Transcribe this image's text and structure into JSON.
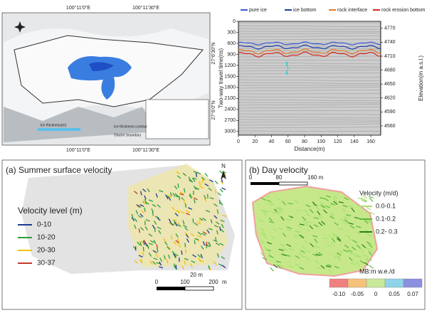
{
  "map_top": {
    "top_labels": [
      "100°11'0\"E",
      "100°11'30\"E"
    ],
    "bottom_labels": [
      "100°11'0\"E",
      "100°11'30\"E"
    ],
    "left_labels": [
      "27°6'30\"N",
      "27°6'0\"N"
    ],
    "legend": [
      "Ice thickness(m)",
      "Ice thickness contour",
      "Glacier boundary"
    ]
  },
  "radar": {
    "legend": [
      {
        "name": "pure ice",
        "color": "#3a5bd9"
      },
      {
        "name": "ice bottom",
        "color": "#1f3fa8"
      },
      {
        "name": "rock interface",
        "color": "#e07a2a"
      },
      {
        "name": "rock erosion bottom",
        "color": "#d62a1e"
      }
    ],
    "y_label": "Two-way travel time(ns)",
    "y2_label": "Elevation(m a.s.l.)",
    "x_label": "Distance(m)",
    "xlim": [
      0,
      172
    ],
    "ylim": [
      0,
      3100
    ],
    "y2lim": [
      4785,
      4540
    ],
    "xticks": [
      0,
      20,
      40,
      60,
      80,
      100,
      120,
      140,
      160
    ],
    "yticks": [
      0,
      300,
      600,
      900,
      1200,
      1500,
      1800,
      2100,
      2400,
      2700,
      3000
    ],
    "y2ticks": [
      4770,
      4740,
      4710,
      4680,
      4650,
      4620,
      4590,
      4560
    ]
  },
  "panel_a": {
    "title": "(a) Summer surface velocity",
    "legend_title": "Velocity level (m)",
    "legend": [
      {
        "label": "0-10",
        "color": "#1f3a93"
      },
      {
        "label": "10-20",
        "color": "#2e9e3e"
      },
      {
        "label": "20-30",
        "color": "#f2c200"
      },
      {
        "label": "30-37",
        "color": "#c0392b"
      }
    ],
    "north": "N",
    "small_scale": "20 m",
    "scale_labels": [
      "0",
      "100",
      "200",
      "m"
    ]
  },
  "panel_b": {
    "title": "(b) Day velocity",
    "scale_labels": [
      "0",
      "80",
      "160 m"
    ],
    "legend_title": "Velocity (m/d)",
    "legend": [
      {
        "label": "0.0-0.1",
        "color": "#a8e070"
      },
      {
        "label": "0.1-0.2",
        "color": "#5cb83a"
      },
      {
        "label": "0.2- 0.3",
        "color": "#2e7d1f"
      }
    ],
    "mb_title": "MB:m w.e./d",
    "colorbar": [
      {
        "label": "-0.10",
        "color": "#f08080"
      },
      {
        "label": "-0.05",
        "color": "#f5c27a"
      },
      {
        "label": "0",
        "color": "#c9e89a"
      },
      {
        "label": "0.05",
        "color": "#8fd3e8"
      },
      {
        "label": "0.07",
        "color": "#8b8fe0"
      }
    ]
  }
}
